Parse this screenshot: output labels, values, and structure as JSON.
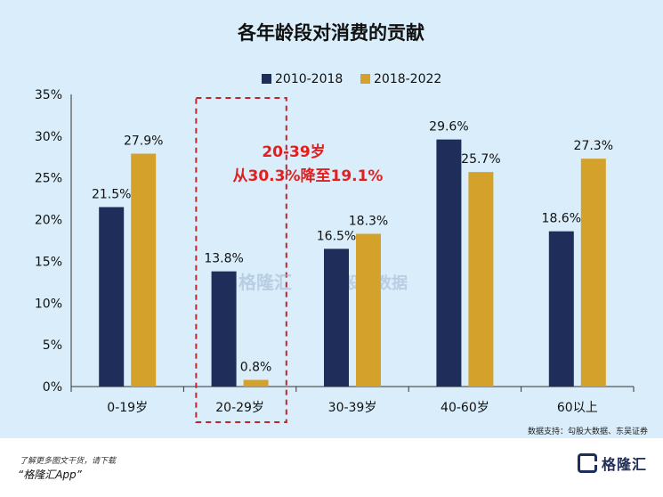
{
  "chart_data": {
    "type": "bar",
    "title": "各年龄段对消费的贡献",
    "categories": [
      "0-19岁",
      "20-29岁",
      "30-39岁",
      "40-60岁",
      "60以上"
    ],
    "series": [
      {
        "name": "2010-2018",
        "color": "#1f2d5a",
        "values": [
          21.5,
          13.8,
          16.5,
          29.6,
          18.6
        ],
        "labels": [
          "21.5%",
          "13.8%",
          "16.5%",
          "29.6%",
          "18.6%"
        ]
      },
      {
        "name": "2018-2022",
        "color": "#d4a12a",
        "values": [
          27.9,
          0.8,
          18.3,
          25.7,
          27.3
        ],
        "labels": [
          "27.9%",
          "0.8%",
          "18.3%",
          "25.7%",
          "27.3%"
        ]
      }
    ],
    "ylim": [
      0,
      35
    ],
    "yticks": [
      "0%",
      "5%",
      "10%",
      "15%",
      "20%",
      "25%",
      "30%",
      "35%"
    ],
    "legend_position": "top-center",
    "annotation": {
      "line1": "20-39岁",
      "line2": "从30.3%降至19.1%",
      "color": "#e02020"
    },
    "highlight_category": "20-29岁",
    "source": "数据支持：勾股大数据、东吴证券",
    "watermark": {
      "brand": "格隆汇",
      "sub": "勾股大数据"
    }
  },
  "footer": {
    "line1": "了解更多图文干货，请下载",
    "line2": "“格隆汇App”",
    "brand": "格隆汇"
  }
}
